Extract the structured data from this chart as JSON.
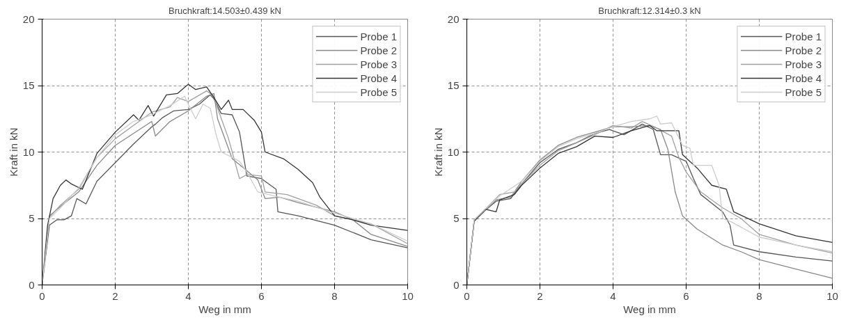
{
  "chart_data": [
    {
      "type": "line",
      "title": "Bruchkraft:14.503±0.439 kN",
      "xlabel": "Weg in mm",
      "ylabel": "Kraft in kN",
      "xlim": [
        0,
        10
      ],
      "ylim": [
        0,
        20
      ],
      "xticks": [
        0,
        2,
        4,
        6,
        8,
        10
      ],
      "yticks": [
        0,
        5,
        10,
        15,
        20
      ],
      "grid": true,
      "legend": "top right",
      "line_style": "solid",
      "marker": "none",
      "series": [
        {
          "name": "Probe 1",
          "color": "#555555",
          "x": [
            0,
            0.2,
            0.4,
            0.6,
            0.8,
            0.95,
            1.2,
            1.5,
            2,
            2.5,
            3,
            3.1,
            3.3,
            3.6,
            4,
            4.3,
            4.6,
            4.7,
            4.9,
            5.2,
            5.4,
            5.6,
            6.0,
            6.4,
            6.45,
            7,
            8,
            9,
            10
          ],
          "values": [
            0,
            4.5,
            4.9,
            4.9,
            5.2,
            6.5,
            6.1,
            7.8,
            9.2,
            10.6,
            11.9,
            12.1,
            12.6,
            13.1,
            13.2,
            13.6,
            14.3,
            14.0,
            12.9,
            12.8,
            11.5,
            8.2,
            8.0,
            7.2,
            5.5,
            5.2,
            4.5,
            3.4,
            2.8
          ]
        },
        {
          "name": "Probe 2",
          "color": "#888888",
          "x": [
            0,
            0.2,
            0.5,
            1.0,
            1.5,
            2,
            2.5,
            3.0,
            3.1,
            3.5,
            4,
            4.5,
            4.7,
            4.8,
            5.2,
            5.6,
            5.9,
            6.1,
            6.5,
            7,
            8,
            8.5,
            9,
            10
          ],
          "values": [
            0,
            5.2,
            5.9,
            7.0,
            9.0,
            10.5,
            11.4,
            12.3,
            11.2,
            12.3,
            13.1,
            14.2,
            14.4,
            12.5,
            9.5,
            8.6,
            7.9,
            6.5,
            6.6,
            6.2,
            5.5,
            4.9,
            3.8,
            2.9
          ]
        },
        {
          "name": "Probe 3",
          "color": "#a0a0a0",
          "x": [
            0,
            0.2,
            0.5,
            1.0,
            1.5,
            2,
            2.5,
            3,
            3.5,
            3.7,
            4,
            4.5,
            4.7,
            4.8,
            5.1,
            5.4,
            5.6,
            6.0,
            6.1,
            6.7,
            7.5,
            8,
            9,
            10
          ],
          "values": [
            0,
            5.1,
            6.0,
            7.2,
            9.6,
            11.0,
            12.0,
            13.0,
            13.4,
            14.1,
            13.8,
            14.6,
            14.2,
            13.3,
            11.0,
            8.0,
            8.3,
            8.2,
            7.0,
            6.8,
            6.0,
            5.2,
            4.6,
            3.1
          ]
        },
        {
          "name": "Probe 4",
          "color": "#333333",
          "x": [
            0,
            0.15,
            0.3,
            0.5,
            0.65,
            0.8,
            1.1,
            1.5,
            2,
            2.5,
            2.65,
            2.9,
            3.05,
            3.4,
            3.7,
            4.0,
            4.2,
            4.5,
            4.7,
            4.9,
            5.1,
            5.2,
            5.5,
            5.8,
            6.0,
            6.1,
            6.6,
            7.0,
            7.4,
            7.6,
            8.0,
            8.5,
            9,
            9.5,
            10
          ],
          "values": [
            0,
            4.5,
            6.5,
            7.5,
            7.9,
            7.6,
            7.2,
            9.9,
            11.5,
            12.8,
            12.4,
            13.5,
            12.7,
            14.3,
            14.4,
            15.1,
            14.7,
            14.9,
            14.1,
            13.2,
            13.9,
            13.2,
            13.2,
            12.4,
            11.5,
            10.0,
            9.5,
            8.7,
            7.7,
            6.6,
            5.2,
            4.9,
            4.5,
            4.3,
            4.1
          ]
        },
        {
          "name": "Probe 5",
          "color": "#cccccc",
          "x": [
            0,
            0.2,
            0.5,
            1.0,
            1.5,
            2,
            2.5,
            3,
            3.5,
            3.9,
            4.0,
            4.2,
            4.4,
            4.6,
            4.75,
            4.9,
            5.2,
            5.4,
            5.6,
            5.9,
            6.5,
            7,
            8,
            9,
            10
          ],
          "values": [
            0,
            5.0,
            5.8,
            7.3,
            9.6,
            11.3,
            12.3,
            12.8,
            13.5,
            14.2,
            13.6,
            12.5,
            13.6,
            13.3,
            11.4,
            10.0,
            9.6,
            9.3,
            8.5,
            7.0,
            6.6,
            6.3,
            5.4,
            4.6,
            3.3
          ]
        }
      ]
    },
    {
      "type": "line",
      "title": "Bruchkraft:12.314±0.3 kN",
      "xlabel": "Weg in mm",
      "ylabel": "Kraft in kN",
      "xlim": [
        0,
        10
      ],
      "ylim": [
        0,
        20
      ],
      "xticks": [
        0,
        2,
        4,
        6,
        8,
        10
      ],
      "yticks": [
        0,
        5,
        10,
        15,
        20
      ],
      "grid": true,
      "legend": "top right",
      "line_style": "solid",
      "marker": "none",
      "series": [
        {
          "name": "Probe 1",
          "color": "#555555",
          "x": [
            0,
            0.2,
            0.5,
            0.8,
            1.2,
            1.5,
            2,
            2.5,
            3,
            3.5,
            3.9,
            4.3,
            4.8,
            5.1,
            5.3,
            5.6,
            6.0,
            6.2,
            6.4,
            7.0,
            7.2,
            7.3,
            8,
            9,
            10
          ],
          "values": [
            0,
            4.8,
            5.6,
            6.3,
            6.5,
            7.6,
            9.2,
            10.2,
            10.7,
            11.4,
            11.7,
            11.3,
            12.1,
            11.7,
            9.8,
            9.8,
            9.3,
            8.0,
            6.8,
            5.5,
            4.5,
            3.0,
            2.5,
            2.1,
            1.8
          ]
        },
        {
          "name": "Probe 2",
          "color": "#888888",
          "x": [
            0,
            0.2,
            0.5,
            0.8,
            1.2,
            1.5,
            2,
            2.5,
            3,
            3.5,
            4,
            4.5,
            5,
            5.3,
            5.5,
            5.7,
            5.9,
            6.3,
            7,
            7.5,
            8,
            9,
            10
          ],
          "values": [
            0,
            4.8,
            5.6,
            6.4,
            6.6,
            7.8,
            9.4,
            10.5,
            11.1,
            11.5,
            11.9,
            11.9,
            12.0,
            11.7,
            10.2,
            7.0,
            5.2,
            4.2,
            3.0,
            2.5,
            1.9,
            1.2,
            0.5
          ]
        },
        {
          "name": "Probe 3",
          "color": "#a0a0a0",
          "x": [
            0,
            0.2,
            0.5,
            0.9,
            1.3,
            1.5,
            2,
            2.5,
            3,
            3.5,
            4,
            4.5,
            4.8,
            5.2,
            5.6,
            5.8,
            6.0,
            6.4,
            7.0,
            7.5,
            8,
            9,
            10
          ],
          "values": [
            0,
            4.9,
            5.7,
            6.8,
            7.0,
            7.6,
            9.0,
            10.1,
            10.7,
            11.3,
            12.0,
            11.8,
            12.3,
            11.8,
            11.2,
            9.6,
            8.5,
            7.0,
            5.8,
            5.0,
            3.8,
            3.0,
            2.4
          ]
        },
        {
          "name": "Probe 4",
          "color": "#333333",
          "x": [
            0,
            0.2,
            0.5,
            0.8,
            0.9,
            1.3,
            1.5,
            2,
            2.5,
            3,
            3.5,
            4,
            4.5,
            5,
            5.2,
            5.5,
            5.8,
            5.9,
            6.3,
            6.7,
            7.1,
            7.3,
            8,
            9,
            10
          ],
          "values": [
            0,
            4.8,
            5.7,
            5.5,
            6.4,
            6.8,
            7.5,
            8.8,
            9.9,
            10.4,
            11.2,
            11.1,
            11.6,
            12.0,
            11.6,
            11.6,
            11.6,
            9.8,
            8.8,
            7.5,
            7.2,
            5.5,
            4.6,
            3.7,
            3.2
          ]
        },
        {
          "name": "Probe 5",
          "color": "#cccccc",
          "x": [
            0,
            0.2,
            0.5,
            0.9,
            1.5,
            2,
            2.5,
            3,
            3.5,
            4,
            4.5,
            5,
            5.2,
            5.3,
            5.6,
            5.9,
            6.1,
            6.2,
            6.7,
            6.9,
            7,
            7.2,
            8,
            9,
            10
          ],
          "values": [
            0,
            4.9,
            5.7,
            6.7,
            7.8,
            9.3,
            10.4,
            11.0,
            11.4,
            11.9,
            12.3,
            12.5,
            12.7,
            12.1,
            12.2,
            10.5,
            10.3,
            9.0,
            9.0,
            7.5,
            5.0,
            4.8,
            3.6,
            3.0,
            2.5
          ]
        }
      ]
    }
  ]
}
